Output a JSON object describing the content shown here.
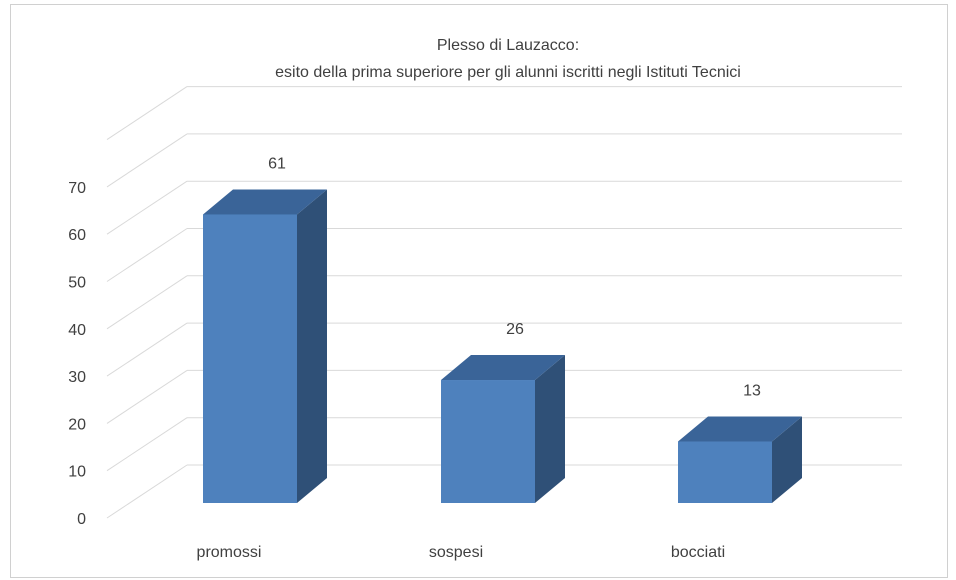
{
  "chart_data": {
    "type": "bar",
    "title": "Plesso di Lauzacco:",
    "subtitle": "esito della prima superiore per gli alunni iscritti negli Istituti Tecnici",
    "categories": [
      "promossi",
      "sospesi",
      "bocciati"
    ],
    "values": [
      61,
      26,
      13
    ],
    "ylim": [
      0,
      70
    ],
    "yticks": [
      0,
      10,
      20,
      30,
      40,
      50,
      60,
      70
    ],
    "grid": true,
    "legend": "none",
    "three_d": true,
    "colors": {
      "front": "#4E81BD",
      "side": "#2F5077",
      "top": "#3A6498",
      "grid": "#d9d9d9",
      "text": "#404040"
    }
  }
}
